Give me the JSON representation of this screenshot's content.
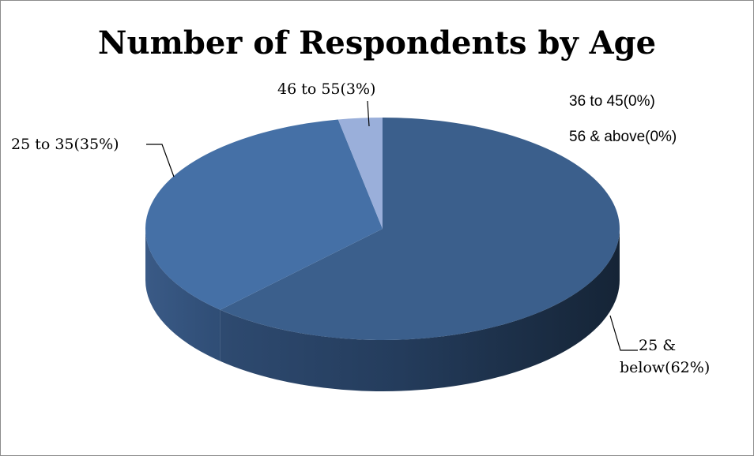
{
  "chart_data": {
    "type": "pie",
    "title": "Number of Respondents by Age",
    "slices": [
      {
        "label": "25 & below",
        "value": 62,
        "label_text": "25 & below(62%)",
        "label_lines": [
          "25 &",
          "below(62%)"
        ],
        "color": "#3b5f8c"
      },
      {
        "label": "25 to 35",
        "value": 35,
        "label_text": "25 to 35(35%)",
        "label_lines": [
          "25 to 35(35%)"
        ],
        "color": "#4570a6"
      },
      {
        "label": "36 to 45",
        "value": 0,
        "label_text": "36 to 45(0%)",
        "label_lines": [
          "36 to 45(0%)"
        ],
        "color": "#6a8cc0"
      },
      {
        "label": "46 to 55",
        "value": 3,
        "label_text": "46 to 55(3%)",
        "label_lines": [
          "46 to 55(3%)"
        ],
        "color": "#9aafda"
      },
      {
        "label": "56 & above",
        "value": 0,
        "label_text": "56 & above(0%)",
        "label_lines": [
          "56 & above(0%)"
        ],
        "color": "#b8c8e6"
      }
    ],
    "style": "3d",
    "legend": "none"
  }
}
